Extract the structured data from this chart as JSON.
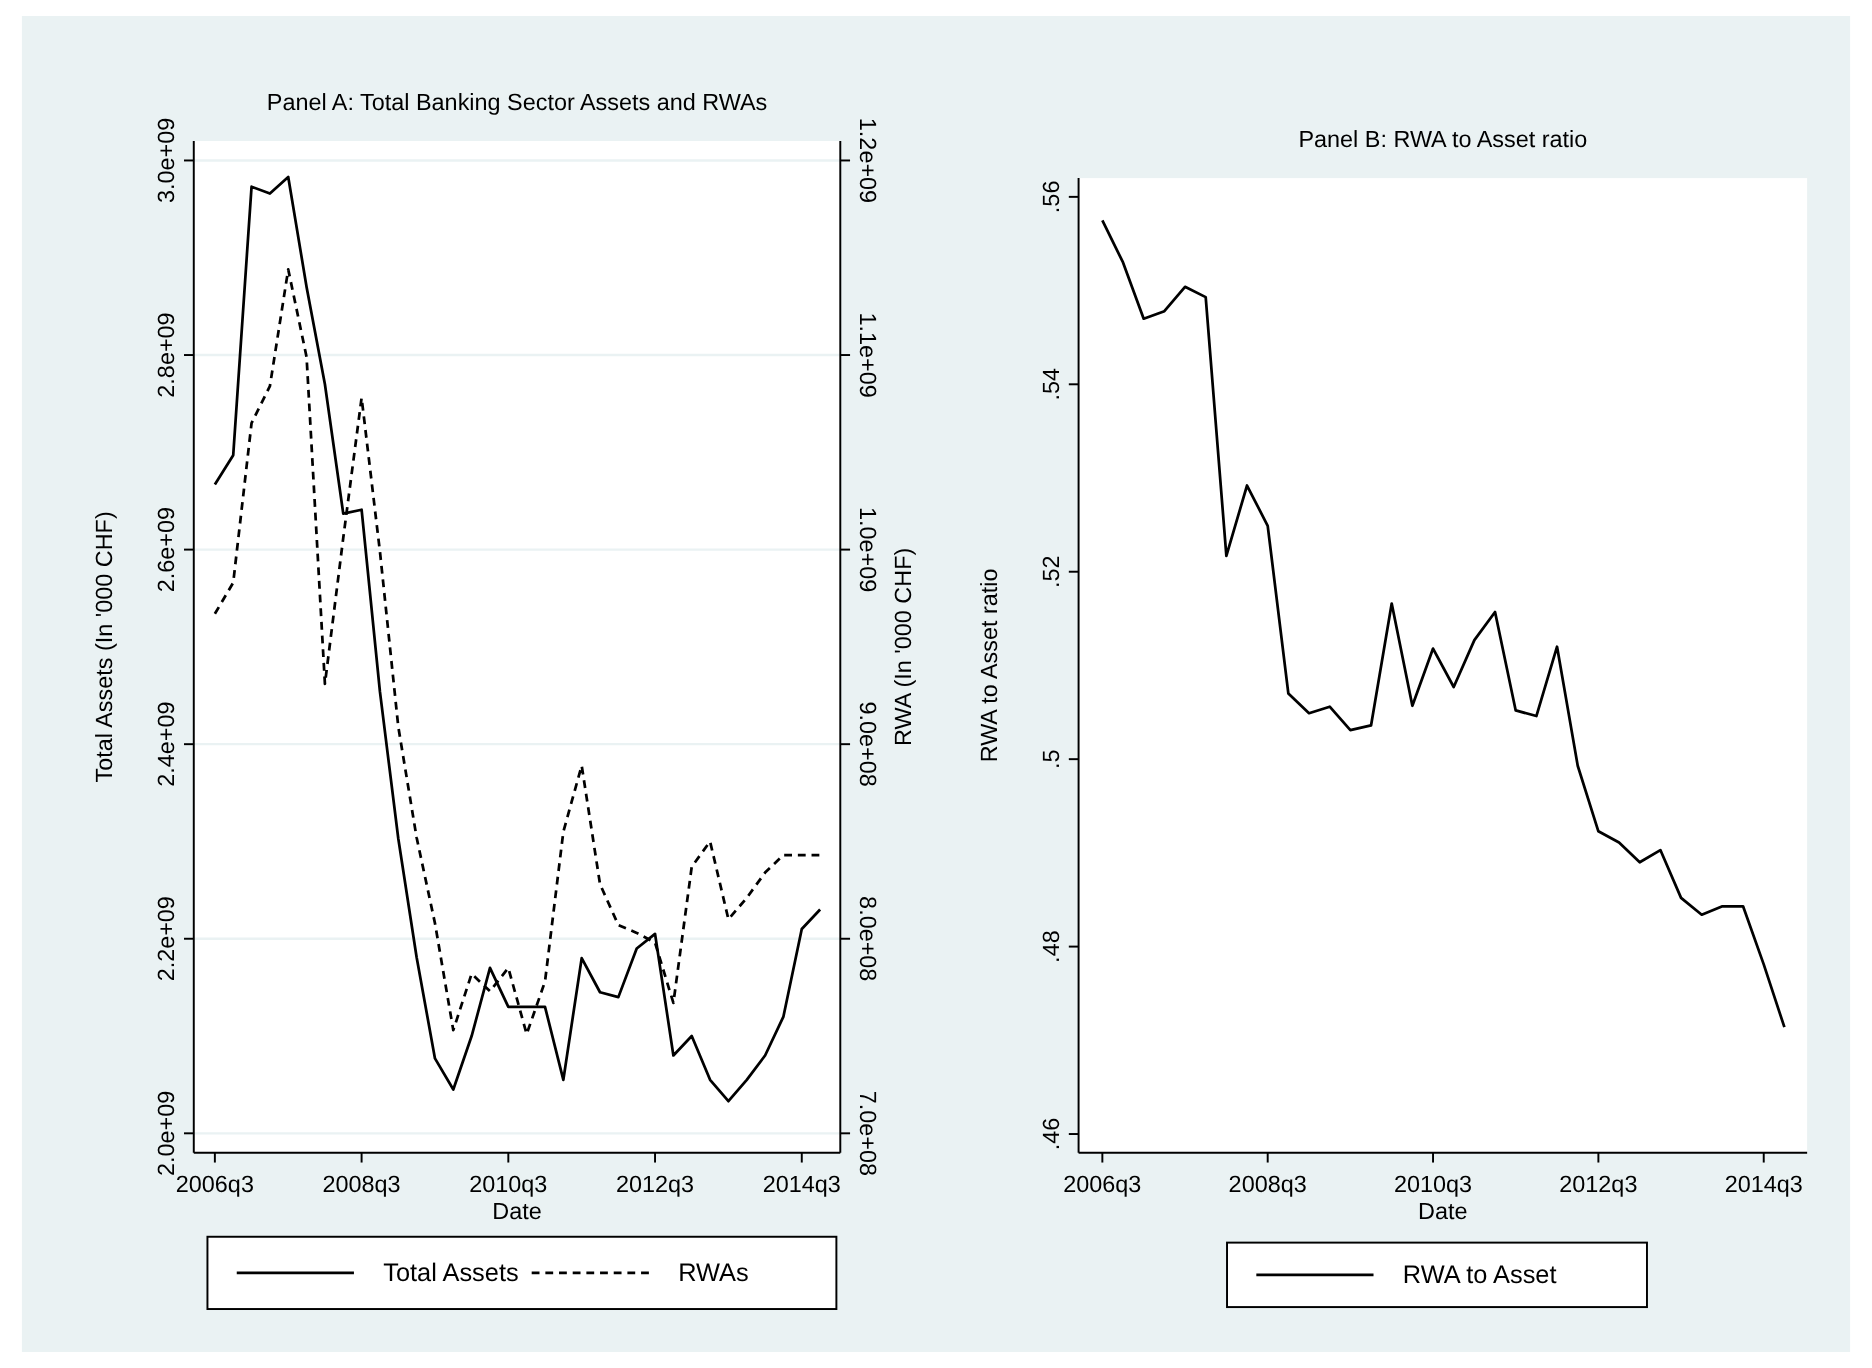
{
  "chart_data": [
    {
      "type": "line",
      "title": "Panel A: Total Banking Sector Assets and RWAs",
      "xlabel": "Date",
      "ylabel": "Total Assets (In '000 CHF)",
      "y2label": "RWA (In '000 CHF)",
      "categories": [
        "2006q3",
        null,
        null,
        null,
        null,
        null,
        null,
        null,
        "2008q3",
        null,
        null,
        null,
        null,
        null,
        null,
        null,
        "2010q3",
        null,
        null,
        null,
        null,
        null,
        null,
        null,
        "2012q3",
        null,
        null,
        null,
        null,
        null,
        null,
        null,
        "2014q3",
        null
      ],
      "series": [
        {
          "name": "Total Assets",
          "color": "#000000",
          "line_style": "solid",
          "values": [
            2667000000,
            2697000000,
            2973000000,
            2966000000,
            2983000000,
            2870000000,
            2770000000,
            2637000000,
            2641000000,
            2454000000,
            2303000000,
            2181000000,
            2077000000,
            2045000000,
            2100000000,
            2170000000,
            2130000000,
            2130000000,
            2130000000,
            2055000000,
            2180000000,
            2145000000,
            2140000000,
            2190000000,
            2205000000,
            2080000000,
            2100000000,
            2055000000,
            2033000000,
            2055000000,
            2080000000,
            2120000000,
            2210000000,
            2230000000
          ]
        },
        {
          "name": "RWAs",
          "color": "#000000",
          "line_style": "dashed",
          "axis": "y2",
          "values": [
            967000000,
            983000000,
            1065000000,
            1084000000,
            1144000000,
            1099000000,
            931000000,
            1006000000,
            1078000000,
            999000000,
            909000000,
            852000000,
            808000000,
            753000000,
            782000000,
            773000000,
            785000000,
            751000000,
            778000000,
            855000000,
            889000000,
            828000000,
            807000000,
            803000000,
            798000000,
            767000000,
            837000000,
            850000000,
            810000000,
            821000000,
            834000000,
            843000000,
            843000000,
            843000000
          ]
        }
      ],
      "ylim": [
        1980000000,
        3020000000
      ],
      "yticks": [
        {
          "value": 2000000000,
          "label": "2.0e+09"
        },
        {
          "value": 2200000000,
          "label": "2.2e+09"
        },
        {
          "value": 2400000000,
          "label": "2.4e+09"
        },
        {
          "value": 2600000000,
          "label": "2.6e+09"
        },
        {
          "value": 2800000000,
          "label": "2.8e+09"
        },
        {
          "value": 3000000000,
          "label": "3.0e+09"
        }
      ],
      "y2lim": [
        690000000,
        1210000000
      ],
      "y2ticks": [
        {
          "value": 700000000,
          "label": "7.0e+08"
        },
        {
          "value": 800000000,
          "label": "8.0e+08"
        },
        {
          "value": 900000000,
          "label": "9.0e+08"
        },
        {
          "value": 1000000000,
          "label": "1.0e+09"
        },
        {
          "value": 1100000000,
          "label": "1.1e+09"
        },
        {
          "value": 1200000000,
          "label": "1.2e+09"
        }
      ],
      "grid": "y",
      "legend": "bottom"
    },
    {
      "type": "line",
      "title": "Panel B: RWA to Asset ratio",
      "xlabel": "Date",
      "ylabel": "RWA to Asset ratio",
      "categories": [
        "2006q3",
        null,
        null,
        null,
        null,
        null,
        null,
        null,
        "2008q3",
        null,
        null,
        null,
        null,
        null,
        null,
        null,
        "2010q3",
        null,
        null,
        null,
        null,
        null,
        null,
        null,
        "2012q3",
        null,
        null,
        null,
        null,
        null,
        null,
        null,
        "2014q3",
        null
      ],
      "series": [
        {
          "name": "RWA to Asset",
          "color": "#000000",
          "line_style": "solid",
          "values": [
            0.5575,
            0.553,
            0.547,
            0.5478,
            0.5504,
            0.5493,
            0.5217,
            0.5292,
            0.5249,
            0.507,
            0.5049,
            0.5056,
            0.5031,
            0.5036,
            0.5166,
            0.5057,
            0.5118,
            0.5077,
            0.5127,
            0.5157,
            0.5052,
            0.5046,
            0.512,
            0.4993,
            0.4923,
            0.4911,
            0.489,
            0.4903,
            0.4852,
            0.4834,
            0.4843,
            0.4843,
            0.4781,
            0.4714
          ]
        }
      ],
      "ylim": [
        0.458,
        0.562
      ],
      "yticks": [
        {
          "value": 0.46,
          "label": ".46"
        },
        {
          "value": 0.48,
          "label": ".48"
        },
        {
          "value": 0.5,
          "label": ".5"
        },
        {
          "value": 0.52,
          "label": ".52"
        },
        {
          "value": 0.54,
          "label": ".54"
        },
        {
          "value": 0.56,
          "label": ".56"
        }
      ],
      "legend": "bottom"
    }
  ]
}
